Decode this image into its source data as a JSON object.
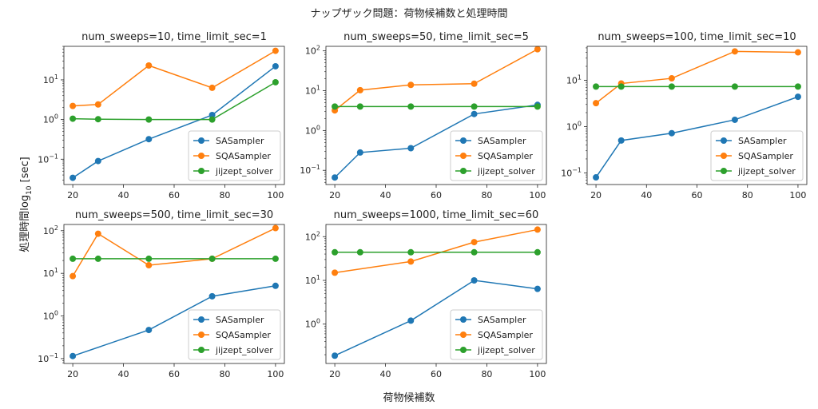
{
  "chart_data": {
    "suptitle": "ナップザック問題：荷物候補数と処理時間",
    "xlabel": "荷物候補数",
    "ylabel": "処理時間log10 [sec]",
    "ylabel_parts": {
      "pre": "処理時間log",
      "sub": "10",
      "post": " [sec]"
    },
    "colors": {
      "SASampler": "#1f77b4",
      "SQASampler": "#ff7f0e",
      "jijzept_solver": "#2ca02c"
    },
    "legend_placement": "lower right",
    "subplots": [
      {
        "type": "line",
        "yscale": "log",
        "title": "num_sweeps=10, time_limit_sec=1",
        "x": [
          20,
          30,
          50,
          75,
          100
        ],
        "xlim": [
          16.5,
          103.5
        ],
        "xticks": [
          20,
          40,
          60,
          80,
          100
        ],
        "ylim": [
          0.023,
          70
        ],
        "yticks_exp": [
          -1,
          0,
          1
        ],
        "series": [
          {
            "name": "SASampler",
            "values": [
              0.034,
              0.09,
              0.32,
              1.3,
              22
            ]
          },
          {
            "name": "SQASampler",
            "values": [
              2.2,
              2.4,
              23,
              6.3,
              54
            ]
          },
          {
            "name": "jijzept_solver",
            "values": [
              1.05,
              1.02,
              1.0,
              1.0,
              8.7
            ]
          }
        ]
      },
      {
        "type": "line",
        "yscale": "log",
        "title": "num_sweeps=50, time_limit_sec=5",
        "x": [
          20,
          30,
          50,
          75,
          100
        ],
        "xlim": [
          16.5,
          103.5
        ],
        "xticks": [
          20,
          40,
          60,
          80,
          100
        ],
        "ylim": [
          0.044,
          130
        ],
        "yticks_exp": [
          -1,
          0,
          1,
          2
        ],
        "series": [
          {
            "name": "SASampler",
            "values": [
              0.066,
              0.28,
              0.36,
              2.6,
              4.4
            ]
          },
          {
            "name": "SQASampler",
            "values": [
              3.2,
              10.3,
              14,
              15,
              110
            ]
          },
          {
            "name": "jijzept_solver",
            "values": [
              4.0,
              4.0,
              4.0,
              4.0,
              4.0
            ]
          }
        ]
      },
      {
        "type": "line",
        "yscale": "log",
        "title": "num_sweeps=100, time_limit_sec=10",
        "x": [
          20,
          30,
          50,
          75,
          100
        ],
        "xlim": [
          16.5,
          103.5
        ],
        "xticks": [
          20,
          40,
          60,
          80,
          100
        ],
        "ylim": [
          0.056,
          54
        ],
        "yticks_exp": [
          -1,
          0,
          1
        ],
        "series": [
          {
            "name": "SASampler",
            "values": [
              0.08,
              0.5,
              0.72,
              1.4,
              4.4
            ]
          },
          {
            "name": "SQASampler",
            "values": [
              3.2,
              8.5,
              11,
              42,
              40
            ]
          },
          {
            "name": "jijzept_solver",
            "values": [
              7.3,
              7.3,
              7.3,
              7.3,
              7.3
            ]
          }
        ]
      },
      {
        "type": "line",
        "yscale": "log",
        "title": "num_sweeps=500, time_limit_sec=30",
        "x": [
          20,
          30,
          50,
          75,
          100
        ],
        "xlim": [
          16.5,
          103.5
        ],
        "xticks": [
          20,
          40,
          60,
          80,
          100
        ],
        "ylim": [
          0.077,
          140
        ],
        "yticks_exp": [
          -1,
          0,
          1,
          2
        ],
        "series": [
          {
            "name": "SASampler",
            "values": [
              0.115,
              null,
              0.47,
              2.9,
              5.1
            ]
          },
          {
            "name": "SQASampler",
            "values": [
              8.6,
              85,
              15.5,
              22,
              115
            ]
          },
          {
            "name": "jijzept_solver",
            "values": [
              22,
              22,
              22,
              22,
              22
            ]
          }
        ]
      },
      {
        "type": "line",
        "yscale": "log",
        "title": "num_sweeps=1000, time_limit_sec=60",
        "x": [
          20,
          30,
          50,
          75,
          100
        ],
        "xlim": [
          16.5,
          103.5
        ],
        "xticks": [
          20,
          40,
          60,
          80,
          100
        ],
        "ylim": [
          0.126,
          190
        ],
        "yticks_exp": [
          0,
          1,
          2
        ],
        "series": [
          {
            "name": "SASampler",
            "values": [
              0.19,
              null,
              1.2,
              10,
              6.4
            ]
          },
          {
            "name": "SQASampler",
            "values": [
              15,
              null,
              27,
              75,
              145
            ]
          },
          {
            "name": "jijzept_solver",
            "values": [
              44,
              44,
              44,
              44,
              44
            ]
          }
        ]
      }
    ]
  }
}
